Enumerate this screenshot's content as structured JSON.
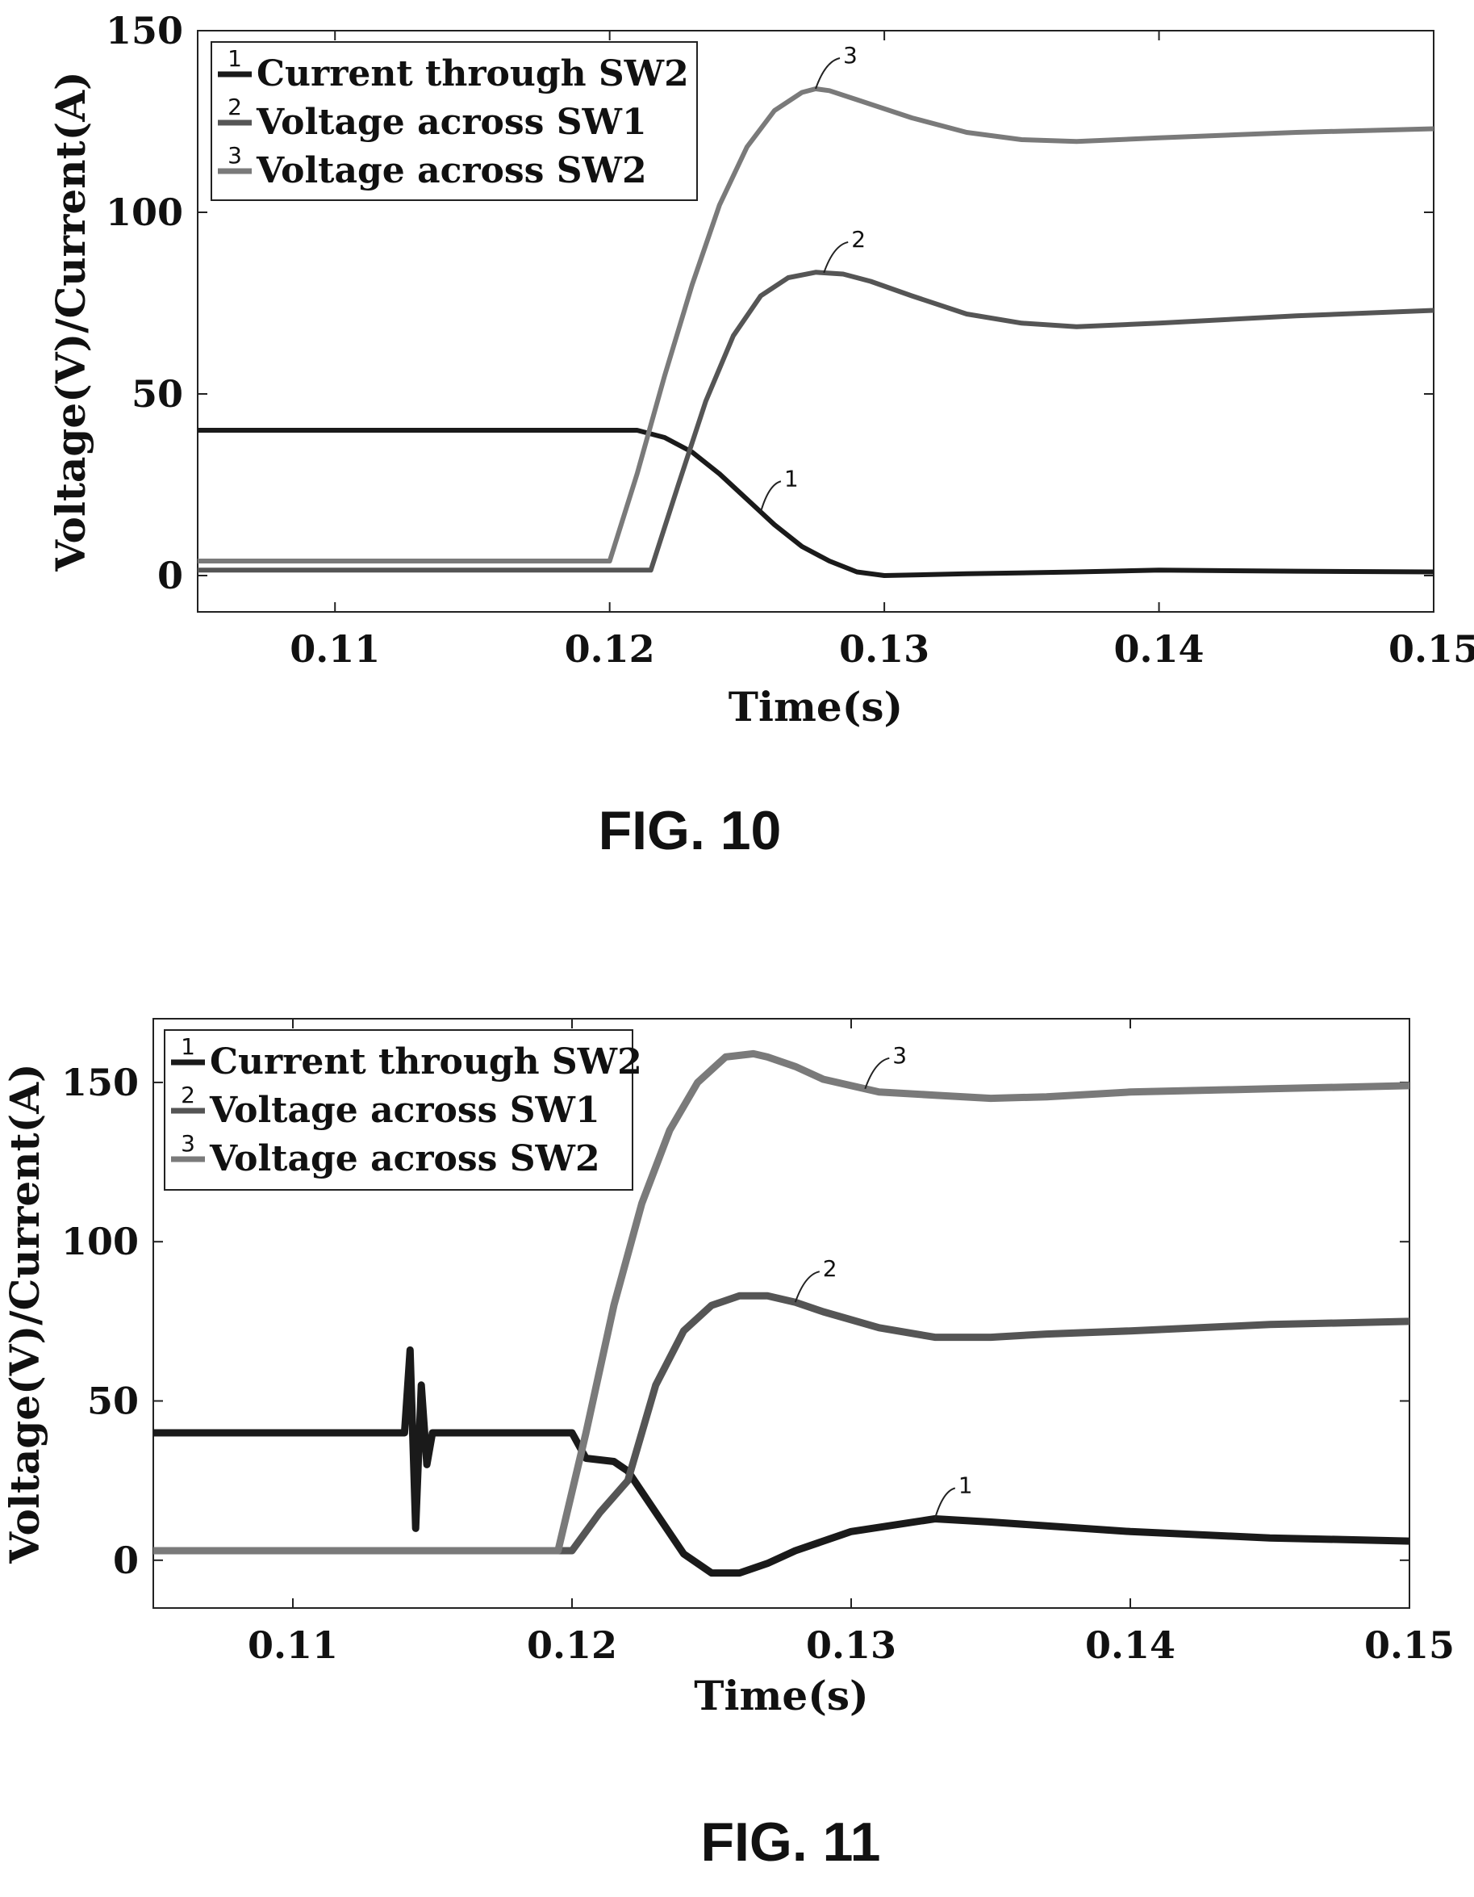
{
  "figures": [
    {
      "caption": "FIG. 10"
    },
    {
      "caption": "FIG. 11"
    }
  ],
  "chart_data": [
    {
      "type": "line",
      "xlabel": "Time(s)",
      "ylabel": "Voltage(V)/Current(A)",
      "xlim": [
        0.105,
        0.15
      ],
      "ylim": [
        -10,
        150
      ],
      "xticks": [
        "0.11",
        "0.12",
        "0.13",
        "0.14",
        "0.15"
      ],
      "yticks": [
        "0",
        "50",
        "100",
        "150"
      ],
      "grid": false,
      "legend_position": "top-left",
      "series": [
        {
          "name": "Current through SW2",
          "marker": "1",
          "color": "#1a1a1a",
          "x": [
            0.105,
            0.118,
            0.121,
            0.122,
            0.123,
            0.124,
            0.125,
            0.126,
            0.127,
            0.128,
            0.129,
            0.13,
            0.133,
            0.137,
            0.14,
            0.145,
            0.15
          ],
          "y": [
            40,
            40,
            40,
            38,
            34,
            28,
            21,
            14,
            8,
            4,
            1,
            0,
            0.5,
            1,
            1.5,
            1.2,
            1
          ]
        },
        {
          "name": "Voltage across SW1",
          "marker": "2",
          "color": "#555555",
          "x": [
            0.105,
            0.1215,
            0.1225,
            0.1235,
            0.1245,
            0.1255,
            0.1265,
            0.1275,
            0.1285,
            0.1295,
            0.131,
            0.133,
            0.135,
            0.137,
            0.14,
            0.145,
            0.15
          ],
          "y": [
            1.5,
            1.5,
            25,
            48,
            66,
            77,
            82,
            83.5,
            83,
            81,
            77,
            72,
            69.5,
            68.5,
            69.5,
            71.5,
            73
          ]
        },
        {
          "name": "Voltage across SW2",
          "marker": "3",
          "color": "#7a7a7a",
          "x": [
            0.105,
            0.12,
            0.121,
            0.122,
            0.123,
            0.124,
            0.125,
            0.126,
            0.127,
            0.1275,
            0.128,
            0.129,
            0.131,
            0.133,
            0.135,
            0.137,
            0.14,
            0.145,
            0.15
          ],
          "y": [
            4,
            4,
            28,
            55,
            80,
            102,
            118,
            128,
            133,
            134,
            133.5,
            131,
            126,
            122,
            120,
            119.5,
            120.5,
            122,
            123
          ]
        }
      ]
    },
    {
      "type": "line",
      "xlabel": "Time(s)",
      "ylabel": "Voltage(V)/Current(A)",
      "xlim": [
        0.105,
        0.15
      ],
      "ylim": [
        -15,
        170
      ],
      "xticks": [
        "0.11",
        "0.12",
        "0.13",
        "0.14",
        "0.15"
      ],
      "yticks": [
        "0",
        "50",
        "100",
        "150"
      ],
      "grid": false,
      "legend_position": "top-left",
      "series": [
        {
          "name": "Current through SW2",
          "marker": "1",
          "color": "#1a1a1a",
          "x": [
            0.105,
            0.114,
            0.1142,
            0.1144,
            0.1146,
            0.1148,
            0.115,
            0.12,
            0.1205,
            0.1215,
            0.122,
            0.123,
            0.124,
            0.125,
            0.126,
            0.127,
            0.128,
            0.13,
            0.133,
            0.135,
            0.14,
            0.145,
            0.15
          ],
          "y": [
            40,
            40,
            66,
            10,
            55,
            30,
            40,
            40,
            32,
            31,
            28,
            15,
            2,
            -4,
            -4,
            -1,
            3,
            9,
            13,
            12,
            9,
            7,
            6
          ]
        },
        {
          "name": "Voltage across SW1",
          "marker": "2",
          "color": "#555555",
          "x": [
            0.105,
            0.12,
            0.121,
            0.122,
            0.123,
            0.124,
            0.125,
            0.126,
            0.127,
            0.128,
            0.129,
            0.131,
            0.133,
            0.135,
            0.137,
            0.14,
            0.145,
            0.15
          ],
          "y": [
            3,
            3,
            15,
            25,
            55,
            72,
            80,
            83,
            83,
            81,
            78,
            73,
            70,
            70,
            71,
            72,
            74,
            75
          ]
        },
        {
          "name": "Voltage across SW2",
          "marker": "3",
          "color": "#7a7a7a",
          "x": [
            0.105,
            0.1195,
            0.1205,
            0.1215,
            0.1225,
            0.1235,
            0.1245,
            0.1255,
            0.1265,
            0.127,
            0.128,
            0.129,
            0.13,
            0.131,
            0.133,
            0.135,
            0.137,
            0.14,
            0.145,
            0.15
          ],
          "y": [
            3,
            3,
            40,
            80,
            112,
            135,
            150,
            158,
            159,
            158,
            155,
            151,
            149,
            147,
            146,
            145,
            145.5,
            147,
            148,
            149
          ]
        }
      ]
    }
  ]
}
